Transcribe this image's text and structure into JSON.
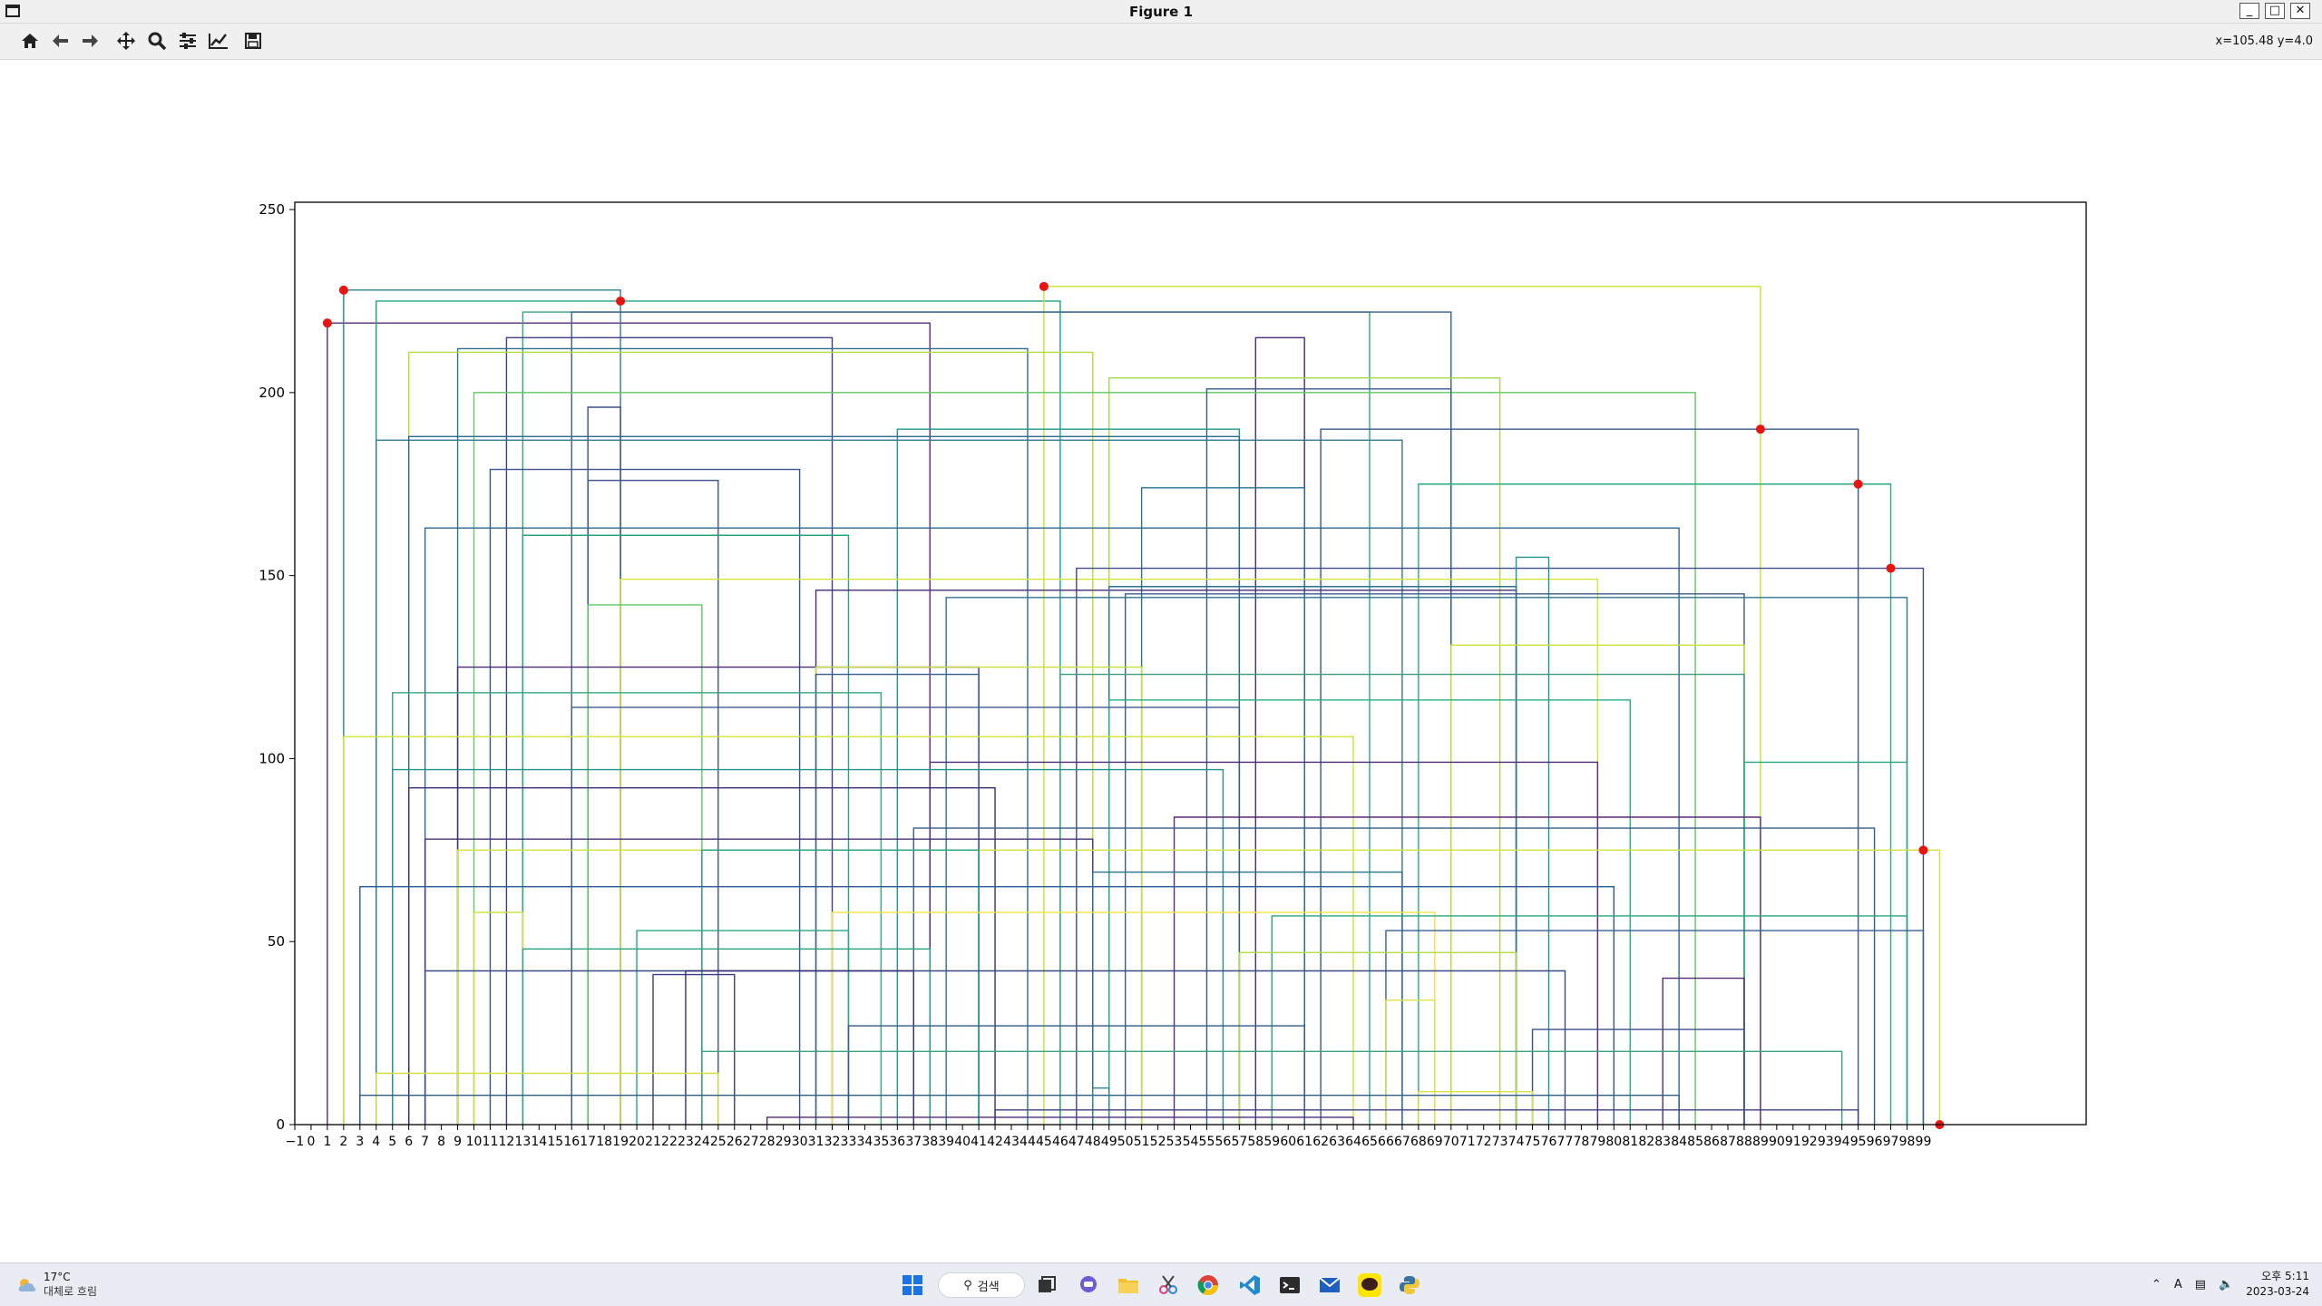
{
  "window": {
    "title": "Figure 1",
    "min_label": "_",
    "max_label": "□",
    "close_label": "✕"
  },
  "toolbar": {
    "buttons": [
      "home-icon",
      "back-icon",
      "forward-icon",
      "pan-icon",
      "zoom-icon",
      "configure-subplots-icon",
      "edit-axis-icon",
      "save-icon"
    ],
    "coords": "x=105.48 y=4.0"
  },
  "chart_data": {
    "type": "line",
    "title": "",
    "xlabel": "",
    "ylabel": "",
    "xlim": [
      -1,
      109
    ],
    "ylim": [
      0,
      252
    ],
    "x_ticks": [
      -1,
      0,
      1,
      2,
      3,
      4,
      5,
      6,
      7,
      8,
      9,
      10,
      11,
      12,
      13,
      14,
      15,
      16,
      17,
      18,
      19,
      20,
      21,
      22,
      23,
      24,
      25,
      26,
      27,
      28,
      29,
      30,
      31,
      32,
      33,
      34,
      35,
      36,
      37,
      38,
      39,
      40,
      41,
      42,
      43,
      44,
      45,
      46,
      47,
      48,
      49,
      50,
      51,
      52,
      53,
      54,
      55,
      56,
      57,
      58,
      59,
      60,
      61,
      62,
      63,
      64,
      65,
      66,
      67,
      68,
      69,
      70,
      71,
      72,
      73,
      74,
      75,
      76,
      77,
      78,
      79,
      80,
      81,
      82,
      83,
      84,
      85,
      86,
      87,
      88,
      89,
      90,
      91,
      92,
      93,
      94,
      95,
      96,
      97,
      98,
      99
    ],
    "y_ticks": [
      0,
      50,
      100,
      150,
      200,
      250
    ],
    "grid": false,
    "legend": false,
    "red_points": [
      [
        1,
        219
      ],
      [
        2,
        228
      ],
      [
        19,
        225
      ],
      [
        45,
        229
      ],
      [
        89,
        190
      ],
      [
        95,
        175
      ],
      [
        97,
        152
      ],
      [
        99,
        75
      ],
      [
        100,
        0
      ]
    ],
    "brackets": [
      [
        1,
        38,
        219,
        "#5b2a74"
      ],
      [
        2,
        19,
        228,
        "#2f7f8c"
      ],
      [
        4,
        46,
        225,
        "#1f9f86"
      ],
      [
        45,
        89,
        229,
        "#c6df3a"
      ],
      [
        13,
        65,
        222,
        "#34a37f"
      ],
      [
        16,
        70,
        222,
        "#3a5d8f"
      ],
      [
        12,
        32,
        215,
        "#3d3f85"
      ],
      [
        9,
        44,
        212,
        "#2f6f8c"
      ],
      [
        6,
        48,
        211,
        "#b5dc3e"
      ],
      [
        58,
        61,
        215,
        "#4a2a7a"
      ],
      [
        49,
        73,
        204,
        "#a8d94a"
      ],
      [
        10,
        85,
        200,
        "#62c765"
      ],
      [
        55,
        70,
        201,
        "#35598c"
      ],
      [
        17,
        19,
        196,
        "#3c4f8b"
      ],
      [
        62,
        95,
        190,
        "#35598c"
      ],
      [
        36,
        57,
        190,
        "#22968a"
      ],
      [
        4,
        67,
        187,
        "#317a8e"
      ],
      [
        6,
        57,
        188,
        "#2a6b8e"
      ],
      [
        68,
        97,
        175,
        "#27ad80"
      ],
      [
        11,
        30,
        179,
        "#3b528b"
      ],
      [
        17,
        25,
        176,
        "#3b528b"
      ],
      [
        51,
        61,
        174,
        "#2c728e"
      ],
      [
        7,
        84,
        163,
        "#31678d"
      ],
      [
        13,
        33,
        161,
        "#2aa27f"
      ],
      [
        19,
        79,
        149,
        "#d5e53a"
      ],
      [
        47,
        99,
        152,
        "#3e4a89"
      ],
      [
        74,
        76,
        155,
        "#1f948c"
      ],
      [
        31,
        74,
        146,
        "#462b7a"
      ],
      [
        49,
        74,
        147,
        "#2d6f8e"
      ],
      [
        50,
        88,
        145,
        "#3b5a8c"
      ],
      [
        39,
        98,
        144,
        "#2e748d"
      ],
      [
        17,
        24,
        142,
        "#5ec962"
      ],
      [
        70,
        88,
        131,
        "#cbe13a"
      ],
      [
        9,
        41,
        125,
        "#4b2877"
      ],
      [
        31,
        51,
        125,
        "#c8e03f"
      ],
      [
        46,
        88,
        123,
        "#3e9c7e"
      ],
      [
        31,
        41,
        123,
        "#355e8b"
      ],
      [
        5,
        35,
        118,
        "#3aa67b"
      ],
      [
        49,
        81,
        116,
        "#27ad81"
      ],
      [
        16,
        57,
        114,
        "#3a5c8b"
      ],
      [
        2,
        64,
        106,
        "#d1e33a"
      ],
      [
        38,
        79,
        99,
        "#4e2c77"
      ],
      [
        88,
        98,
        99,
        "#2aa57e"
      ],
      [
        5,
        56,
        97,
        "#23928c"
      ],
      [
        6,
        42,
        92,
        "#3c2d74"
      ],
      [
        53,
        89,
        84,
        "#5a2a78"
      ],
      [
        37,
        96,
        81,
        "#345d8b"
      ],
      [
        7,
        48,
        78,
        "#45307b"
      ],
      [
        9,
        100,
        75,
        "#d3e53a"
      ],
      [
        24,
        41,
        75,
        "#1f9f86"
      ],
      [
        48,
        67,
        69,
        "#2c6f8e"
      ],
      [
        3,
        80,
        65,
        "#2d5b8d"
      ],
      [
        10,
        13,
        58,
        "#c8e03f"
      ],
      [
        32,
        69,
        58,
        "#f0e34a"
      ],
      [
        59,
        98,
        57,
        "#2aa47f"
      ],
      [
        66,
        99,
        53,
        "#35608d"
      ],
      [
        20,
        33,
        53,
        "#26a686"
      ],
      [
        13,
        38,
        48,
        "#27a384"
      ],
      [
        57,
        74,
        47,
        "#b2dc43"
      ],
      [
        7,
        77,
        42,
        "#3b4a86"
      ],
      [
        21,
        26,
        41,
        "#3b3a84"
      ],
      [
        23,
        37,
        42,
        "#352e78"
      ],
      [
        83,
        88,
        40,
        "#4e2c77"
      ],
      [
        66,
        69,
        34,
        "#dbe34a"
      ],
      [
        33,
        61,
        27,
        "#35598c"
      ],
      [
        75,
        88,
        26,
        "#3c4f8b"
      ],
      [
        24,
        94,
        20,
        "#3ba37e"
      ],
      [
        4,
        25,
        14,
        "#d1df45"
      ],
      [
        68,
        75,
        9,
        "#d9e142"
      ],
      [
        3,
        84,
        8,
        "#2c5e8c"
      ],
      [
        48,
        49,
        10,
        "#2d8a8c"
      ],
      [
        42,
        95,
        4,
        "#3b4086"
      ],
      [
        28,
        64,
        2,
        "#4e2c77"
      ]
    ]
  },
  "taskbar": {
    "weather_temp": "17°C",
    "weather_desc": "대체로 흐림",
    "search_label": "검색",
    "apps": [
      "windows-start-icon",
      "search-icon",
      "task-view-icon",
      "chat-icon",
      "file-explorer-icon",
      "snipping-tool-icon",
      "chrome-icon",
      "vscode-icon",
      "terminal-icon",
      "mail-icon",
      "kakaotalk-icon",
      "python-icon"
    ],
    "ime_label": "A",
    "clock_period_time": "오후 5:11",
    "clock_date": "2023-03-24"
  }
}
